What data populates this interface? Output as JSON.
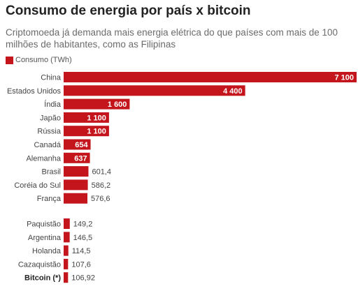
{
  "title": "Consumo de energia por país x bitcoin",
  "subtitle": "Criptomoeda já demanda mais energia elétrica do que países com mais de 100 milhões de habitantes, como as Filipinas",
  "chart_data": {
    "type": "bar",
    "orientation": "horizontal",
    "title": "Consumo de energia por país x bitcoin",
    "subtitle": "Criptomoeda já demanda mais energia elétrica do que países com mais de 100 milhões de habitantes, como as Filipinas",
    "legend": [
      "Consumo (TWh)"
    ],
    "legend_position": "top-left",
    "bar_color": "#c4151c",
    "grid": false,
    "groups": [
      {
        "categories": [
          "China",
          "Estados Unidos",
          "Índia",
          "Japão",
          "Rússia",
          "Canadá",
          "Alemanha",
          "Brasil",
          "Coréia do Sul",
          "França"
        ],
        "values": [
          7100,
          4400,
          1600,
          1100,
          1100,
          654,
          637,
          601.4,
          586.2,
          576.6
        ],
        "value_labels": [
          "7 100",
          "4 400",
          "1 600",
          "1 100",
          "1 100",
          "654",
          "637",
          "601,4",
          "586,2",
          "576,6"
        ]
      },
      {
        "categories": [
          "Paquistão",
          "Argentina",
          "Holanda",
          "Cazaquistão",
          "Bitcoin (*)"
        ],
        "values": [
          149.2,
          146.5,
          114.5,
          107.6,
          106.92
        ],
        "value_labels": [
          "149,2",
          "146,5",
          "114,5",
          "107,6",
          "106,92"
        ],
        "highlight": "Bitcoin (*)"
      }
    ]
  }
}
